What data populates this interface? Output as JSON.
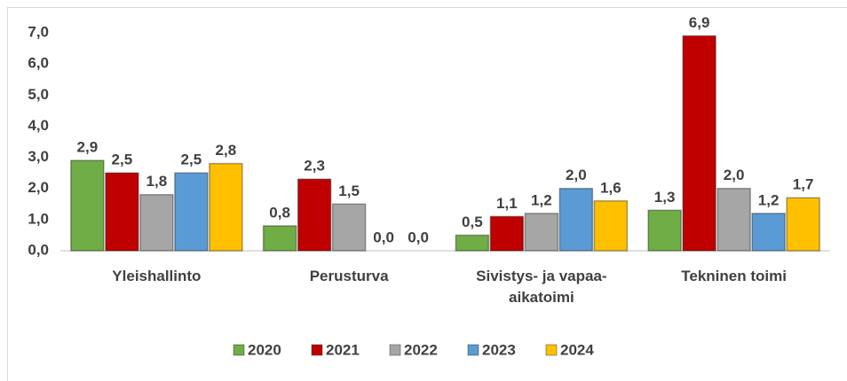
{
  "chart_data": {
    "type": "bar",
    "categories": [
      "Yleishallinto",
      "Perusturva",
      "Sivistys- ja vapaa-aikatoimi",
      "Tekninen toimi"
    ],
    "series": [
      {
        "name": "2020",
        "color": "#70ad47",
        "values": [
          2.9,
          0.8,
          0.5,
          1.3
        ],
        "value_labels": [
          "2,9",
          "0,8",
          "0,5",
          "1,3"
        ]
      },
      {
        "name": "2021",
        "color": "#c00000",
        "values": [
          2.5,
          2.3,
          1.1,
          6.9
        ],
        "value_labels": [
          "2,5",
          "2,3",
          "1,1",
          "6,9"
        ]
      },
      {
        "name": "2022",
        "color": "#a6a6a6",
        "values": [
          1.8,
          1.5,
          1.2,
          2.0
        ],
        "value_labels": [
          "1,8",
          "1,5",
          "1,2",
          "2,0"
        ]
      },
      {
        "name": "2023",
        "color": "#5b9bd5",
        "values": [
          2.5,
          0.0,
          2.0,
          1.2
        ],
        "value_labels": [
          "2,5",
          "0,0",
          "2,0",
          "1,2"
        ]
      },
      {
        "name": "2024",
        "color": "#ffc000",
        "values": [
          2.8,
          0.0,
          1.6,
          1.7
        ],
        "value_labels": [
          "2,8",
          "0,0",
          "1,6",
          "1,7"
        ]
      }
    ],
    "ylim": [
      0,
      7
    ],
    "yticks": [
      {
        "value": 0,
        "label": "0,0"
      },
      {
        "value": 1,
        "label": "1,0"
      },
      {
        "value": 2,
        "label": "2,0"
      },
      {
        "value": 3,
        "label": "3,0"
      },
      {
        "value": 4,
        "label": "4,0"
      },
      {
        "value": 5,
        "label": "5,0"
      },
      {
        "value": 6,
        "label": "6,0"
      },
      {
        "value": 7,
        "label": "7,0"
      }
    ],
    "grid": false,
    "legend": "bottom"
  }
}
